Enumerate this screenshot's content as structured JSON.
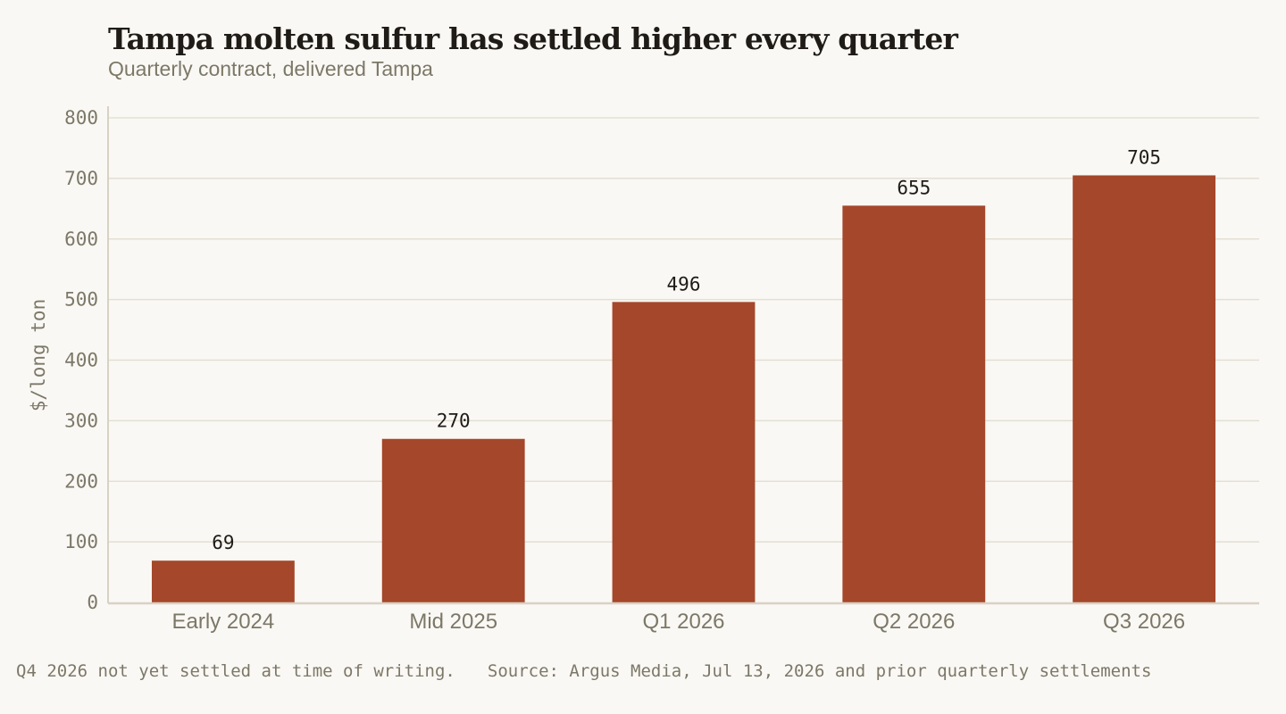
{
  "chart_data": {
    "type": "bar",
    "title": "Tampa molten sulfur has settled higher every quarter",
    "subtitle": "Quarterly contract, delivered Tampa",
    "xlabel": "",
    "ylabel": "$/long ton",
    "categories": [
      "Early 2024",
      "Mid 2025",
      "Q1 2026",
      "Q2 2026",
      "Q3 2026"
    ],
    "values": [
      69,
      270,
      496,
      655,
      705
    ],
    "ylim": [
      0,
      800
    ],
    "yticks": [
      0,
      100,
      200,
      300,
      400,
      500,
      600,
      700,
      800
    ],
    "data_labels": true,
    "grid": true,
    "legend": "none",
    "colors": {
      "bar": "#a5472a",
      "grid": "#e3dfd3",
      "axis": "#d8d2c4",
      "tick_text": "#7c7868",
      "label_text": "#1f1b16"
    }
  },
  "footer": {
    "note": "Q4 2026 not yet settled at time of writing.",
    "source": "Source: Argus Media, Jul 13, 2026 and prior quarterly settlements"
  }
}
